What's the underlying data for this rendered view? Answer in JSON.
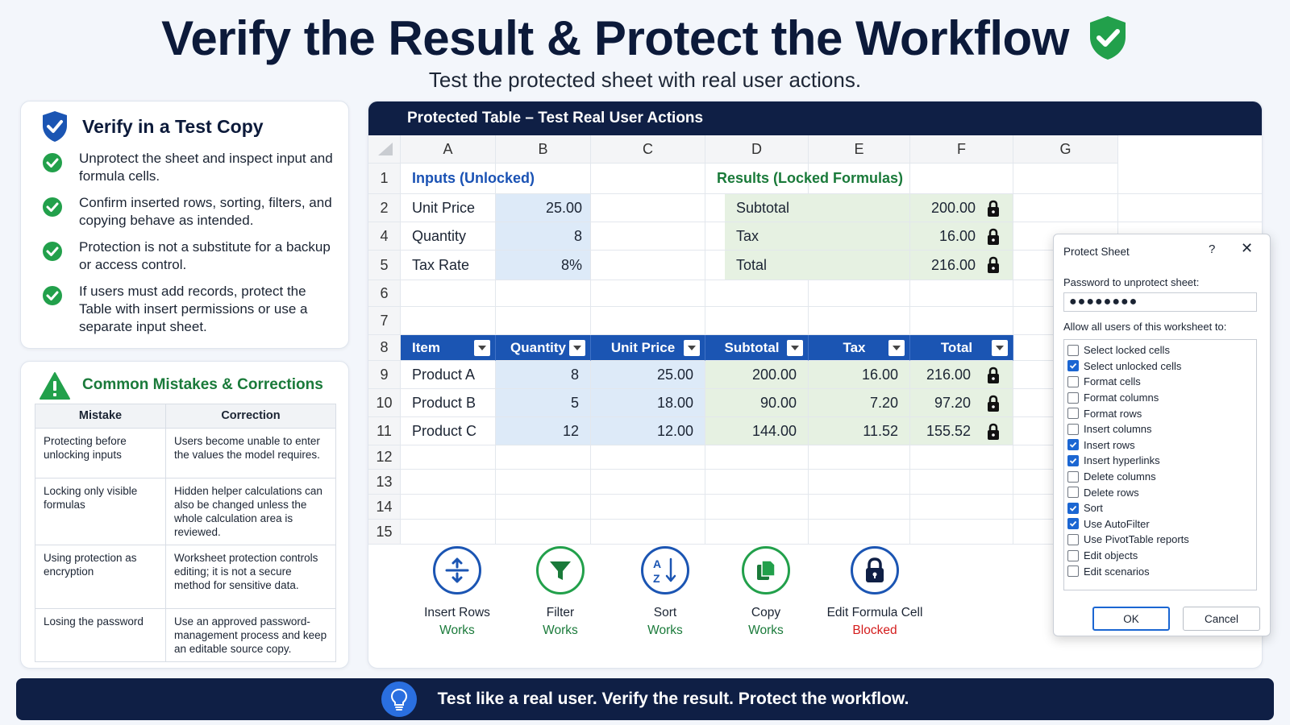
{
  "header": {
    "title": "Verify the Result & Protect the Workflow",
    "subtitle": "Test the protected sheet with real user actions."
  },
  "verify": {
    "title": "Verify in a Test Copy",
    "items": [
      "Unprotect the sheet and inspect input and formula cells.",
      "Confirm inserted rows, sorting, filters, and copying behave as intended.",
      "Protection is not a substitute for a backup or access control.",
      "If users must add records, protect the Table with insert permissions or use a separate input sheet."
    ]
  },
  "mistakes": {
    "title": "Common Mistakes & Corrections",
    "col_mistake": "Mistake",
    "col_correction": "Correction",
    "rows": [
      {
        "mistake": "Protecting before unlocking inputs",
        "correction": "Users become unable to enter the values the model requires."
      },
      {
        "mistake": "Locking only visible formulas",
        "correction": "Hidden helper calculations can also be changed unless the whole calculation area is reviewed."
      },
      {
        "mistake": "Using protection as encryption",
        "correction": "Worksheet protection controls editing; it is not a secure method for sensitive data."
      },
      {
        "mistake": "Losing the password",
        "correction": "Use an approved password-management process and keep an editable source copy."
      }
    ]
  },
  "sheet": {
    "header": "Protected Table – Test Real User Actions",
    "columns": [
      "A",
      "B",
      "C",
      "D",
      "E",
      "F",
      "G"
    ],
    "rows": [
      "1",
      "2",
      "4",
      "5",
      "6",
      "7",
      "8",
      "9",
      "10",
      "11",
      "12",
      "13",
      "14",
      "15"
    ],
    "inputs_heading": "Inputs (Unlocked)",
    "results_heading": "Results (Locked Formulas)",
    "inputs": [
      {
        "label": "Unit Price",
        "value": "25.00"
      },
      {
        "label": "Quantity",
        "value": "8"
      },
      {
        "label": "Tax Rate",
        "value": "8%"
      }
    ],
    "results": [
      {
        "label": "Subtotal",
        "value": "200.00"
      },
      {
        "label": "Tax",
        "value": "16.00"
      },
      {
        "label": "Total",
        "value": "216.00"
      }
    ],
    "table_headers": [
      "Item",
      "Quantity",
      "Unit Price",
      "Subtotal",
      "Tax",
      "Total"
    ],
    "table_rows": [
      [
        "Product A",
        "8",
        "25.00",
        "200.00",
        "16.00",
        "216.00"
      ],
      [
        "Product B",
        "5",
        "18.00",
        "90.00",
        "7.20",
        "97.20"
      ],
      [
        "Product C",
        "12",
        "12.00",
        "144.00",
        "11.52",
        "155.52"
      ]
    ]
  },
  "actions": [
    {
      "label": "Insert Rows",
      "status": "Works",
      "icon": "insert-rows-icon"
    },
    {
      "label": "Filter",
      "status": "Works",
      "icon": "filter-icon"
    },
    {
      "label": "Sort",
      "status": "Works",
      "icon": "sort-az-icon"
    },
    {
      "label": "Copy",
      "status": "Works",
      "icon": "copy-icon"
    },
    {
      "label": "Edit Formula Cell",
      "status": "Blocked",
      "icon": "lock-icon"
    }
  ],
  "dialog": {
    "title": "Protect Sheet",
    "help": "?",
    "close": "✕",
    "password_label": "Password to unprotect sheet:",
    "password_value": "●●●●●●●●",
    "allow_label": "Allow all users of this worksheet to:",
    "options": [
      {
        "label": "Select locked cells",
        "checked": false
      },
      {
        "label": "Select unlocked cells",
        "checked": true
      },
      {
        "label": "Format cells",
        "checked": false
      },
      {
        "label": "Format columns",
        "checked": false
      },
      {
        "label": "Format rows",
        "checked": false
      },
      {
        "label": "Insert columns",
        "checked": false
      },
      {
        "label": "Insert rows",
        "checked": true
      },
      {
        "label": "Insert hyperlinks",
        "checked": true
      },
      {
        "label": "Delete columns",
        "checked": false
      },
      {
        "label": "Delete rows",
        "checked": false
      },
      {
        "label": "Sort",
        "checked": true
      },
      {
        "label": "Use AutoFilter",
        "checked": true
      },
      {
        "label": "Use PivotTable reports",
        "checked": false
      },
      {
        "label": "Edit objects",
        "checked": false
      },
      {
        "label": "Edit scenarios",
        "checked": false
      }
    ],
    "ok": "OK",
    "cancel": "Cancel"
  },
  "footer": {
    "text": "Test like a real user.  Verify the result.  Protect the workflow."
  },
  "colors": {
    "navy": "#0f1f45",
    "blue": "#1b55b3",
    "green": "#1a7a3a",
    "red": "#d41c1c",
    "input_fill": "#ddeaf8",
    "result_fill": "#e6f1e2"
  }
}
